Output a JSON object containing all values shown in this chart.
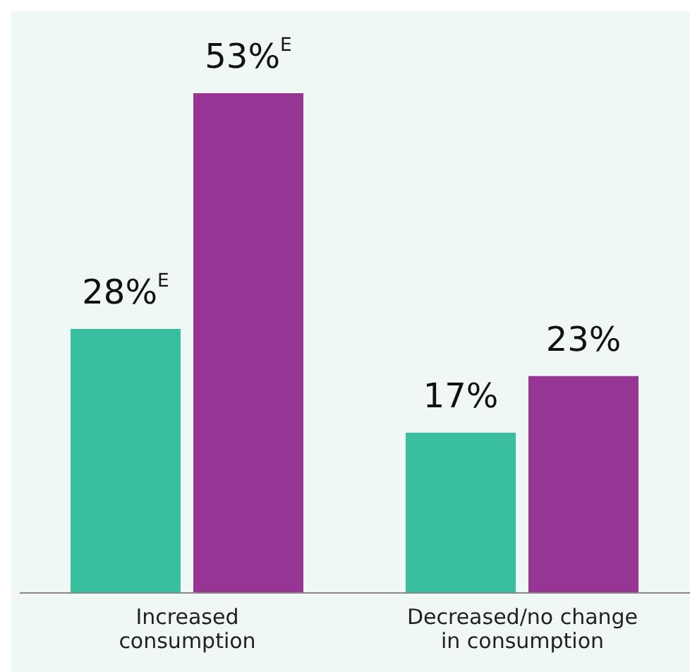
{
  "chart_data": {
    "type": "bar",
    "categories": [
      "Increased consumption",
      "Decreased/no change in consumption"
    ],
    "series": [
      {
        "color": "#3abf9e",
        "values": [
          28,
          17
        ],
        "value_labels": [
          "28%$^{E}$",
          "17%"
        ]
      },
      {
        "color": "#963594",
        "values": [
          53,
          23
        ],
        "value_labels": [
          "53%$^{E}$",
          "23%"
        ]
      }
    ]
  }
}
